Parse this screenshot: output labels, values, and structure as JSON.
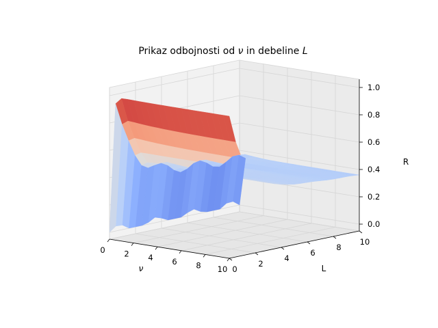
{
  "chart_data": {
    "type": "surface3d",
    "title_prefix": "Prikaz odbojnosti od ",
    "title_sym1": "ν",
    "title_mid": " in debeline ",
    "title_sym2": "L",
    "xlabel": "ν",
    "ylabel": "L",
    "zlabel": "R",
    "xlim": [
      0,
      10
    ],
    "ylim": [
      0,
      10
    ],
    "zlim": [
      0,
      1
    ],
    "x_ticks": [
      "0",
      "2",
      "4",
      "6",
      "8",
      "10"
    ],
    "y_ticks": [
      "0",
      "2",
      "4",
      "6",
      "8",
      "10"
    ],
    "z_ticks": [
      "0.0",
      "0.2",
      "0.4",
      "0.6",
      "0.8",
      "1.0"
    ],
    "colormap": "coolwarm",
    "grid": true,
    "pane_color": "#f2f2f2",
    "grid_color": "#d6d6d6"
  }
}
